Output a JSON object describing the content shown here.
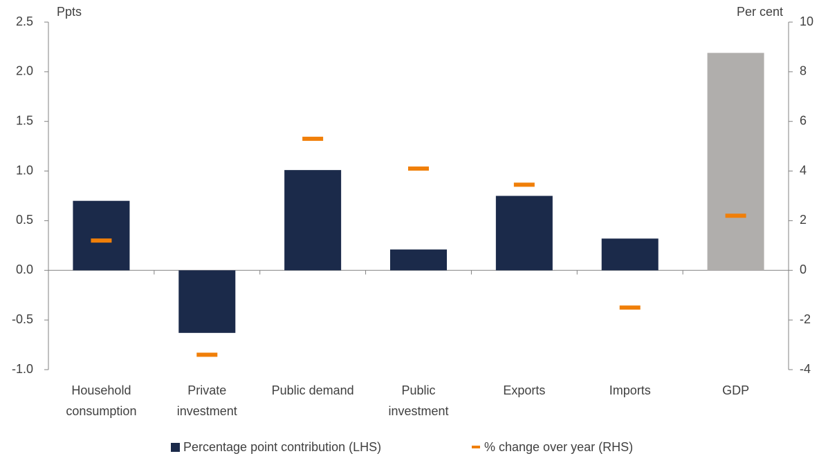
{
  "chart_data": {
    "type": "bar",
    "categories": [
      "Household\nconsumption",
      "Private\ninvestment",
      "Public demand",
      "Public\ninvestment",
      "Exports",
      "Imports",
      "GDP"
    ],
    "series": [
      {
        "name": "Percentage point contribution (LHS)",
        "color": "#1b2a4a",
        "colors": [
          "#1b2a4a",
          "#1b2a4a",
          "#1b2a4a",
          "#1b2a4a",
          "#1b2a4a",
          "#1b2a4a",
          "#b0aeac"
        ],
        "values": [
          0.7,
          -0.63,
          1.01,
          0.21,
          0.75,
          0.32,
          2.19
        ]
      },
      {
        "name": "% change over year (RHS)",
        "color": "#f07f09",
        "axis": "y2",
        "marker": "dash",
        "values": [
          1.2,
          -3.4,
          5.3,
          4.1,
          3.45,
          -1.5,
          2.2
        ]
      }
    ],
    "ylabel": "Ppts",
    "y2label": "Per cent",
    "ylim": [
      -1.0,
      2.5
    ],
    "yticks": [
      {
        "value": -1.0,
        "label": "-1.0"
      },
      -0.5,
      {
        "value": 0,
        "label": "0.0"
      },
      0.5,
      {
        "value": 1.0,
        "label": "1.0"
      },
      1.5,
      {
        "value": 2.0,
        "label": "2.0"
      },
      2.5
    ],
    "y2lim": [
      -4,
      10
    ],
    "y2ticks": [
      -4,
      -2,
      0,
      2,
      4,
      6,
      8,
      10
    ],
    "grid": false,
    "legend": "bottom"
  }
}
